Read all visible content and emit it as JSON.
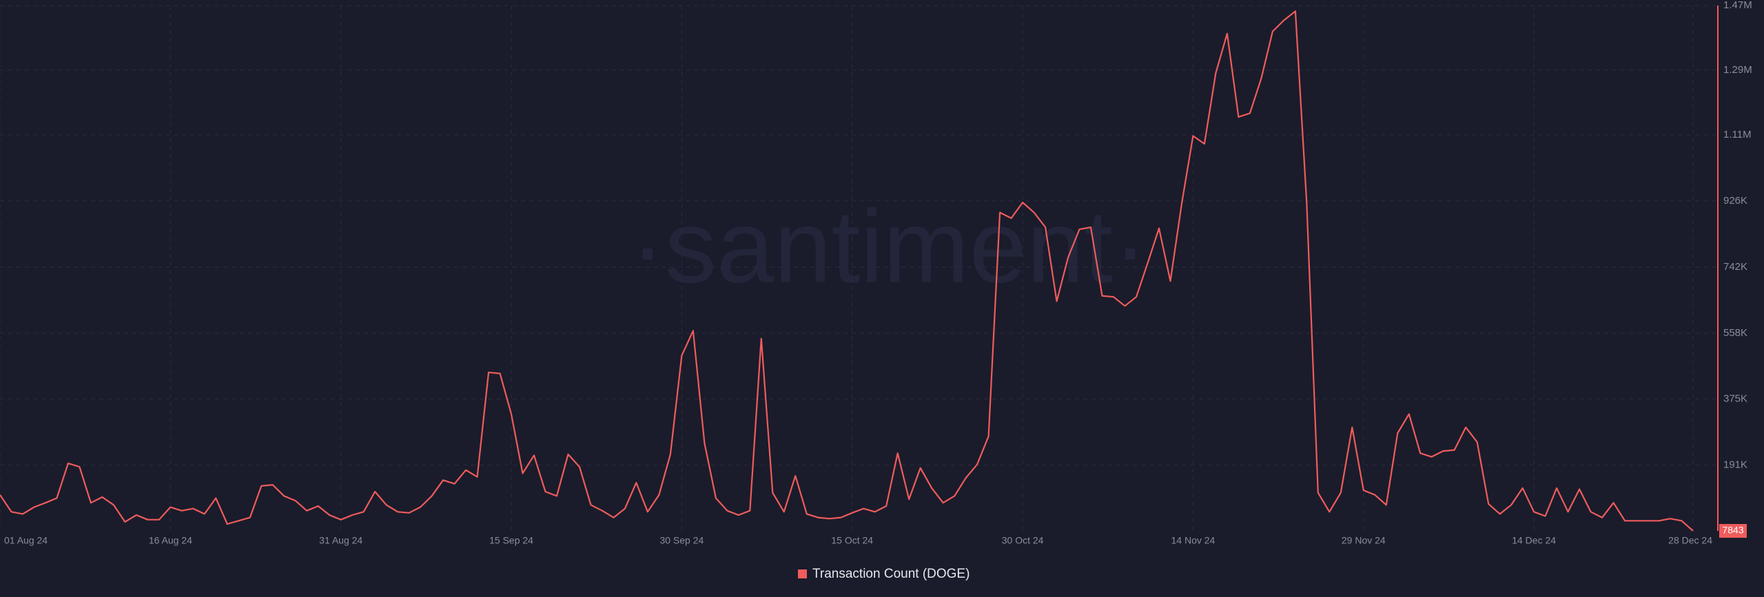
{
  "chart_data": {
    "type": "line",
    "watermark": "·santiment·",
    "categories": [
      "01 Aug 24",
      null,
      null,
      null,
      null,
      null,
      null,
      null,
      null,
      null,
      null,
      null,
      null,
      null,
      null,
      "16 Aug 24",
      null,
      null,
      null,
      null,
      null,
      null,
      null,
      null,
      null,
      null,
      null,
      null,
      null,
      null,
      "31 Aug 24",
      null,
      null,
      null,
      null,
      null,
      null,
      null,
      null,
      null,
      null,
      null,
      null,
      null,
      null,
      "15 Sep 24",
      null,
      null,
      null,
      null,
      null,
      null,
      null,
      null,
      null,
      null,
      null,
      null,
      null,
      null,
      "30 Sep 24",
      null,
      null,
      null,
      null,
      null,
      null,
      null,
      null,
      null,
      null,
      null,
      null,
      null,
      null,
      "15 Oct 24",
      null,
      null,
      null,
      null,
      null,
      null,
      null,
      null,
      null,
      null,
      null,
      null,
      null,
      null,
      "30 Oct 24",
      null,
      null,
      null,
      null,
      null,
      null,
      null,
      null,
      null,
      null,
      null,
      null,
      null,
      null,
      "14 Nov 24",
      null,
      null,
      null,
      null,
      null,
      null,
      null,
      null,
      null,
      null,
      null,
      null,
      null,
      null,
      "29 Nov 24",
      null,
      null,
      null,
      null,
      null,
      null,
      null,
      null,
      null,
      null,
      null,
      null,
      null,
      null,
      "14 Dec 24",
      null,
      null,
      null,
      null,
      null,
      null,
      null,
      null,
      null,
      null,
      null,
      null,
      null,
      "28 Dec 24"
    ],
    "series": [
      {
        "name": "Transaction Count (DOGE)",
        "color": "#f05c5c",
        "values": [
          108000,
          61000,
          55000,
          74000,
          86000,
          99000,
          196000,
          186000,
          86000,
          102000,
          80000,
          33000,
          52000,
          39000,
          39000,
          74000,
          64000,
          70000,
          55000,
          99000,
          27000,
          36000,
          45000,
          133000,
          136000,
          105000,
          92000,
          64000,
          77000,
          52000,
          39000,
          52000,
          61000,
          117000,
          80000,
          61000,
          58000,
          74000,
          105000,
          149000,
          139000,
          177000,
          158000,
          449000,
          446000,
          333000,
          168000,
          218000,
          117000,
          105000,
          221000,
          186000,
          80000,
          64000,
          45000,
          70000,
          142000,
          61000,
          108000,
          221000,
          496000,
          565000,
          252000,
          99000,
          64000,
          52000,
          64000,
          543000,
          114000,
          61000,
          161000,
          55000,
          45000,
          42000,
          45000,
          58000,
          70000,
          61000,
          77000,
          224000,
          96000,
          183000,
          127000,
          86000,
          105000,
          155000,
          193000,
          271000,
          894000,
          878000,
          922000,
          894000,
          853000,
          647000,
          769000,
          847000,
          853000,
          662000,
          659000,
          634000,
          659000,
          753000,
          850000,
          703000,
          919000,
          1107000,
          1085000,
          1282000,
          1392000,
          1160000,
          1170000,
          1267000,
          1398000,
          1429000,
          1454000,
          922000,
          114000,
          61000,
          114000,
          296000,
          121000,
          108000,
          80000,
          280000,
          333000,
          224000,
          214000,
          230000,
          233000,
          296000,
          255000,
          83000,
          55000,
          80000,
          127000,
          61000,
          49000,
          127000,
          61000,
          124000,
          61000,
          45000,
          86000,
          36000,
          36000,
          36000,
          36000,
          42000,
          36000,
          7843
        ]
      }
    ],
    "ylim": [
      7843,
      1470000
    ],
    "yticks": [
      {
        "value": 191000,
        "label": "191K"
      },
      {
        "value": 375000,
        "label": "375K"
      },
      {
        "value": 558000,
        "label": "558K"
      },
      {
        "value": 742000,
        "label": "742K"
      },
      {
        "value": 926000,
        "label": "926K"
      },
      {
        "value": 1110000,
        "label": "1.11M"
      },
      {
        "value": 1290000,
        "label": "1.29M"
      },
      {
        "value": 1470000,
        "label": "1.47M"
      }
    ],
    "grid": true
  }
}
